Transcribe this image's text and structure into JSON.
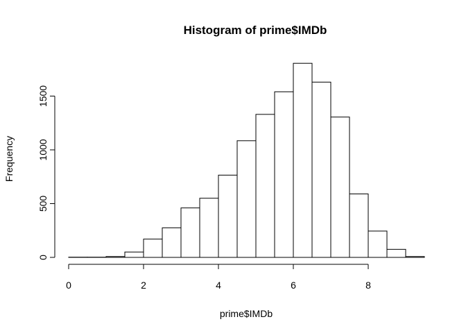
{
  "chart_data": {
    "type": "bar",
    "title": "Histogram of prime$IMDb",
    "xlabel": "prime$IMDb",
    "ylabel": "Frequency",
    "bin_width": 0.5,
    "bins": [
      {
        "x0": 0.0,
        "x1": 0.5,
        "count": 2
      },
      {
        "x0": 0.5,
        "x1": 1.0,
        "count": 2
      },
      {
        "x0": 1.0,
        "x1": 1.5,
        "count": 8
      },
      {
        "x0": 1.5,
        "x1": 2.0,
        "count": 50
      },
      {
        "x0": 2.0,
        "x1": 2.5,
        "count": 170
      },
      {
        "x0": 2.5,
        "x1": 3.0,
        "count": 275
      },
      {
        "x0": 3.0,
        "x1": 3.5,
        "count": 460
      },
      {
        "x0": 3.5,
        "x1": 4.0,
        "count": 550
      },
      {
        "x0": 4.0,
        "x1": 4.5,
        "count": 765
      },
      {
        "x0": 4.5,
        "x1": 5.0,
        "count": 1085
      },
      {
        "x0": 5.0,
        "x1": 5.5,
        "count": 1330
      },
      {
        "x0": 5.5,
        "x1": 6.0,
        "count": 1540
      },
      {
        "x0": 6.0,
        "x1": 6.5,
        "count": 1805
      },
      {
        "x0": 6.5,
        "x1": 7.0,
        "count": 1630
      },
      {
        "x0": 7.0,
        "x1": 7.5,
        "count": 1305
      },
      {
        "x0": 7.5,
        "x1": 8.0,
        "count": 590
      },
      {
        "x0": 8.0,
        "x1": 8.5,
        "count": 245
      },
      {
        "x0": 8.5,
        "x1": 9.0,
        "count": 75
      },
      {
        "x0": 9.0,
        "x1": 9.5,
        "count": 8
      }
    ],
    "xlim": [
      0,
      9.5
    ],
    "ylim": [
      0,
      1805
    ],
    "x_ticks": [
      0,
      2,
      4,
      6,
      8
    ],
    "x_tick_labels": [
      "0",
      "2",
      "4",
      "6",
      "8"
    ],
    "y_ticks": [
      0,
      500,
      1000,
      1500
    ],
    "y_tick_labels": [
      "0",
      "500",
      "1000",
      "1500"
    ],
    "grid": false,
    "legend": "none",
    "bar_fill": "#ffffff",
    "bar_stroke": "#000000"
  }
}
